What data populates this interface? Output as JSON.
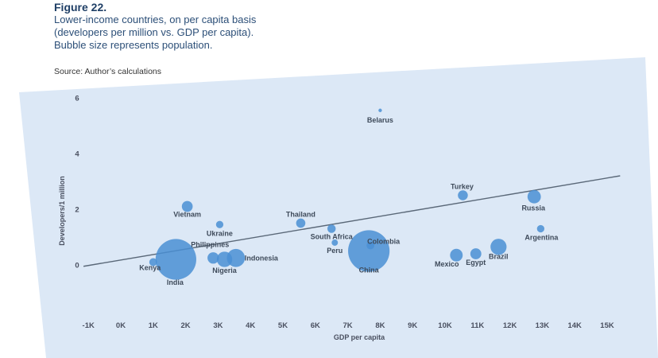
{
  "figure": {
    "number": "Figure 22.",
    "subtitle_lines": [
      "Lower-income countries, on per capita basis",
      "(developers per million vs. GDP per capita).",
      "Bubble size represents population."
    ],
    "source": "Source: Author’s calculations"
  },
  "colors": {
    "panel": "#dce8f6",
    "bubble": "#4a8fd4",
    "trend": "#5a6878"
  },
  "chart_data": {
    "type": "scatter",
    "xlabel": "GDP per capita",
    "ylabel": "Developers/1 million",
    "xlim": [
      -1000,
      15000
    ],
    "ylim": [
      0,
      6
    ],
    "x_ticks": [
      -1000,
      0,
      1000,
      2000,
      3000,
      4000,
      5000,
      6000,
      7000,
      8000,
      9000,
      10000,
      11000,
      12000,
      13000,
      14000,
      15000
    ],
    "x_tick_labels": [
      "-1K",
      "0K",
      "1K",
      "2K",
      "3K",
      "4K",
      "5K",
      "6K",
      "7K",
      "8K",
      "9K",
      "10K",
      "11K",
      "12K",
      "13K",
      "14K",
      "15K"
    ],
    "y_ticks": [
      0,
      2,
      4,
      6
    ],
    "y_tick_labels": [
      "0",
      "2",
      "4",
      "6"
    ],
    "trendline": {
      "x": [
        -1150,
        15400
      ],
      "y": [
        -0.05,
        3.2
      ]
    },
    "points": [
      {
        "label": "Belarus",
        "x": 8000,
        "y": 5.55,
        "population": 9
      },
      {
        "label": "Turkey",
        "x": 10550,
        "y": 2.5,
        "population": 80
      },
      {
        "label": "Russia",
        "x": 12750,
        "y": 2.45,
        "population": 144
      },
      {
        "label": "Argentina",
        "x": 12950,
        "y": 1.3,
        "population": 44
      },
      {
        "label": "Vietnam",
        "x": 2050,
        "y": 2.1,
        "population": 95
      },
      {
        "label": "Ukraine",
        "x": 3050,
        "y": 1.45,
        "population": 44
      },
      {
        "label": "Thailand",
        "x": 5550,
        "y": 1.5,
        "population": 69
      },
      {
        "label": "South Africa",
        "x": 6500,
        "y": 1.3,
        "population": 56
      },
      {
        "label": "Peru",
        "x": 6600,
        "y": 0.8,
        "population": 32
      },
      {
        "label": "Colombia",
        "x": 7700,
        "y": 0.7,
        "population": 49
      },
      {
        "label": "China",
        "x": 7650,
        "y": 0.5,
        "population": 1390
      },
      {
        "label": "Philippines",
        "x": 2850,
        "y": 0.25,
        "population": 105
      },
      {
        "label": "Indonesia",
        "x": 3550,
        "y": 0.25,
        "population": 264
      },
      {
        "label": "Nigeria",
        "x": 3200,
        "y": 0.2,
        "population": 191
      },
      {
        "label": "India",
        "x": 1700,
        "y": 0.2,
        "population": 1339
      },
      {
        "label": "Kenya",
        "x": 1000,
        "y": 0.1,
        "population": 50
      },
      {
        "label": "Mexico",
        "x": 10350,
        "y": 0.35,
        "population": 129
      },
      {
        "label": "Egypt",
        "x": 10950,
        "y": 0.4,
        "population": 98
      },
      {
        "label": "Brazil",
        "x": 11650,
        "y": 0.65,
        "population": 209
      }
    ]
  }
}
